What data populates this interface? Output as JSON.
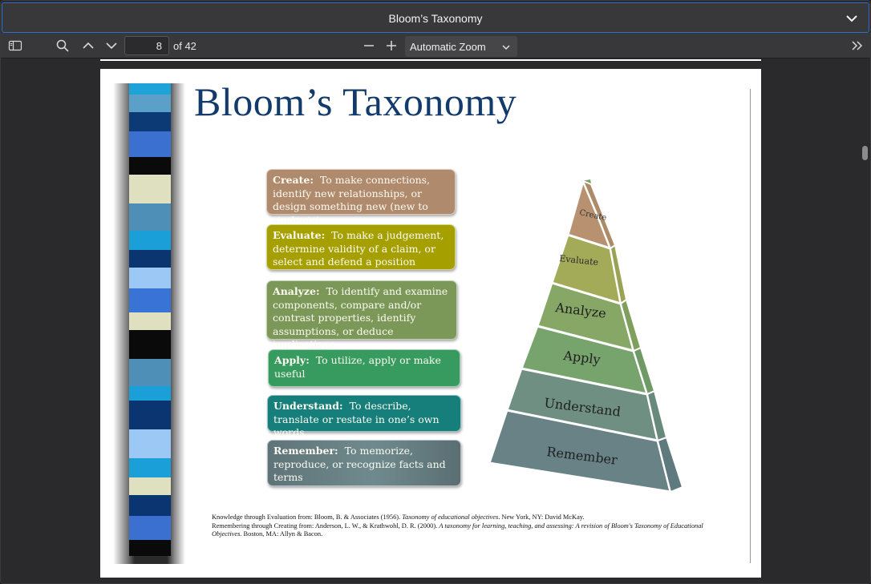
{
  "window": {
    "title": "Bloom’s Taxonomy"
  },
  "toolbar": {
    "page_number": "8",
    "page_count_label": "of 42",
    "zoom_label": "Automatic Zoom"
  },
  "slide": {
    "title": "Bloom’s Taxonomy",
    "levels": [
      {
        "name": "Create",
        "description": "To make connections, identify new relationships, or design something new (new to students)",
        "color": "#b58b6a"
      },
      {
        "name": "Evaluate",
        "description": "To make a judgement, determine validity of a claim, or select and defend a position",
        "color": "#a8a300"
      },
      {
        "name": "Analyze",
        "description": "To identify and examine components, compare and/or contrast properties, identify assumptions, or  deduce implications",
        "color": "#7d9a57"
      },
      {
        "name": "Apply",
        "description": "To utilize, apply or make useful",
        "color": "#3a9a5c"
      },
      {
        "name": "Understand",
        "description": "To describe, translate or restate in one’s own words",
        "color": "#1b7f7a"
      },
      {
        "name": "Remember",
        "description": "To memorize, reproduce, or recognize facts and terms",
        "color": "#5c7478"
      }
    ],
    "pyramid_labels": [
      "Create",
      "Evaluate",
      "Analyze",
      "Apply",
      "Understand",
      "Remember"
    ],
    "footnote": {
      "line1_prefix": "Knowledge through Evaluation from: Bloom, B. & Associates (1956). ",
      "line1_italic": "Taxonomy of educational objectives",
      "line1_suffix": ". New York, NY: David McKay.",
      "line2_prefix": "Remembering through Creating from: Anderson, L. W., & Krathwohl, D. R. (2000). ",
      "line2_italic": "A taxonomy for learning, teaching, and assessing: A revision of Bloom's Taxonomy of Educational Objectives.",
      "line2_suffix": " Boston, MA: Allyn & Bacon."
    }
  }
}
